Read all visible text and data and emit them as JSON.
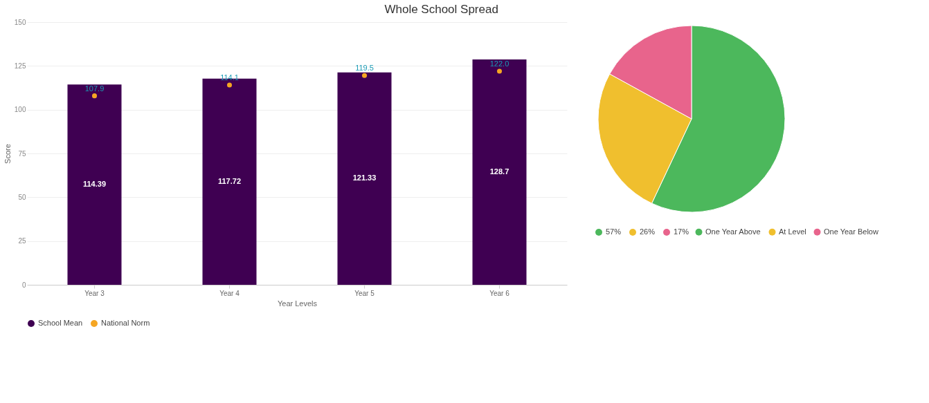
{
  "chart_data": [
    {
      "type": "bar",
      "title": "Whole School Spread",
      "xlabel": "Year Levels",
      "ylabel": "Score",
      "categories": [
        "Year 3",
        "Year 4",
        "Year 5",
        "Year 6"
      ],
      "series": [
        {
          "name": "School Mean",
          "type": "bar",
          "color": "#3f0052",
          "values": [
            114.39,
            117.72,
            121.33,
            128.7
          ],
          "data_labels": true
        },
        {
          "name": "National Norm",
          "type": "scatter",
          "color": "#f5a623",
          "x": [
            "Year 3",
            "Year 4",
            "Year 5",
            "Year 6"
          ],
          "values": [
            107.9,
            114.1,
            119.5,
            122.0
          ],
          "value_labels": [
            "107.9",
            "114.1",
            "119.5",
            "122.0"
          ]
        }
      ],
      "ylim": [
        0,
        150
      ],
      "yticks": [
        0,
        25,
        50,
        75,
        100,
        125,
        150
      ],
      "grid": "y",
      "legend": "bottom",
      "marker": "circle"
    },
    {
      "type": "pie",
      "categories": [
        "One Year Above",
        "At Level",
        "One Year Below"
      ],
      "values": [
        57,
        26,
        17
      ],
      "colors": [
        "#4cb85c",
        "#f0bf2e",
        "#e8648c"
      ],
      "value_labels": [
        "57%",
        "26%",
        "17%"
      ],
      "legend": "bottom"
    }
  ]
}
